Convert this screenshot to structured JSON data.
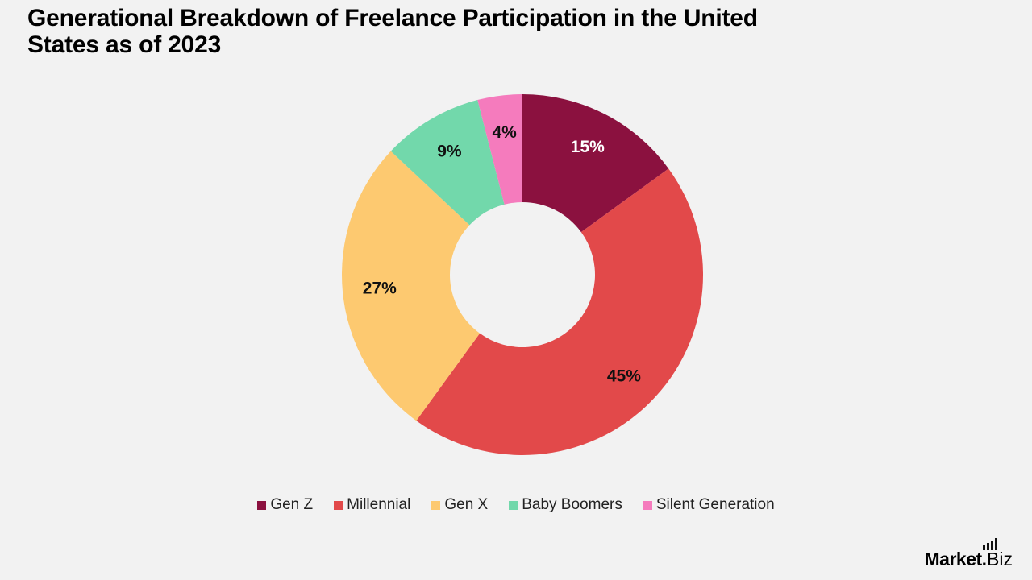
{
  "title": "Generational Breakdown of Freelance Participation in the United States as of 2023",
  "chart_data": {
    "type": "pie",
    "donut": true,
    "title": "Generational Breakdown of Freelance Participation in the United States as of 2023",
    "categories": [
      "Gen Z",
      "Millennial",
      "Gen X",
      "Baby Boomers",
      "Silent Generation"
    ],
    "values": [
      15,
      45,
      27,
      9,
      4
    ],
    "labels": [
      "15%",
      "45%",
      "27%",
      "9%",
      "4%"
    ],
    "colors": [
      "#8b113f",
      "#e2494a",
      "#fdc970",
      "#72d8ab",
      "#f57bbd"
    ],
    "label_colors": [
      "#ffffff",
      "#111111",
      "#111111",
      "#111111",
      "#111111"
    ],
    "legend_position": "bottom"
  },
  "legend": [
    {
      "label": "Gen Z",
      "color": "#8b113f"
    },
    {
      "label": "Millennial",
      "color": "#e2494a"
    },
    {
      "label": "Gen X",
      "color": "#fdc970"
    },
    {
      "label": "Baby Boomers",
      "color": "#72d8ab"
    },
    {
      "label": "Silent Generation",
      "color": "#f57bbd"
    }
  ],
  "logo": {
    "main": "Market",
    "dot": ".",
    "sub": "Biz"
  }
}
